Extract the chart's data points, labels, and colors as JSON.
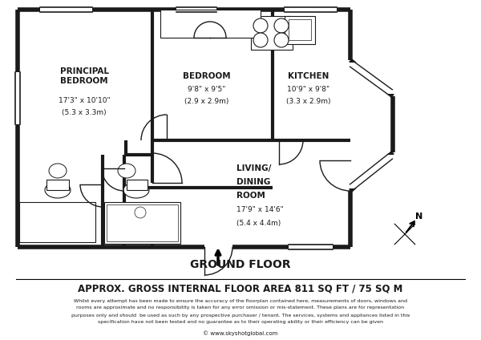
{
  "bg_color": "#ffffff",
  "wall_color": "#1a1a1a",
  "wall_lw": 4.0,
  "inner_lw": 3.0,
  "thin_lw": 1.0,
  "title_floor": "GROUND FLOOR",
  "title_area": "APPROX. GROSS INTERNAL FLOOR AREA 811 SQ FT / 75 SQ M",
  "disclaimer_line1": "Whilst every attempt has been made to ensure the accuracy of the floorplan contained here, measurements of doors, windows and",
  "disclaimer_line2": "rooms are approximate and no responsibility is taken for any error omission or mis-statement. These plans are for representation",
  "disclaimer_line3": "purposes only and should  be used as such by any prospective purchaser / tenant. The services, systems and appliances listed in this",
  "disclaimer_line4": "specification have not been tested and no guarantee as to their operating ability or their efficiency can be given",
  "website": "© www.skyshotglobal.com"
}
